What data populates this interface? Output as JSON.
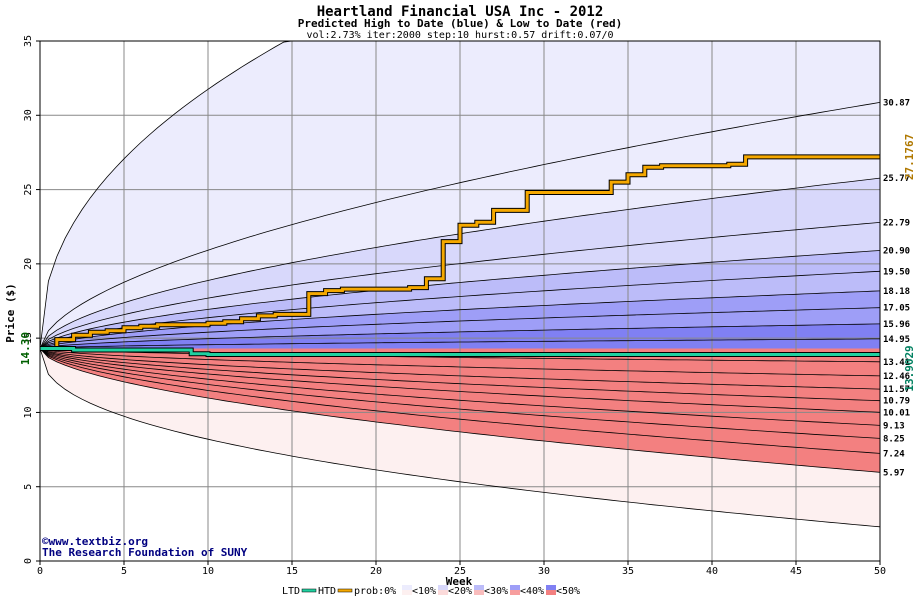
{
  "chart_data": {
    "type": "area",
    "title": "Heartland Financial USA Inc - 2012",
    "subtitle": "Predicted High to Date (blue) &  Low to Date (red)",
    "params_text": "vol:2.73% iter:2000 step:10 hurst:0.57 drift:0.07/0",
    "xlabel": "Week",
    "ylabel": "Price ($)",
    "xlim": [
      0,
      50
    ],
    "ylim": [
      0,
      35
    ],
    "x_ticks": [
      0,
      5,
      10,
      15,
      20,
      25,
      30,
      35,
      40,
      45,
      50
    ],
    "y_ticks": [
      0,
      5,
      10,
      15,
      20,
      25,
      30,
      35
    ],
    "grid": true,
    "start_price": 14.3,
    "start_label": "14.30",
    "upper_band_end_values": [
      30.87,
      25.77,
      22.79,
      20.9,
      19.5,
      18.18,
      17.05,
      15.96,
      14.95
    ],
    "upper_band_end_labels": [
      "30.87",
      "25.77",
      "22.79",
      "20.90",
      "19.50",
      "18.18",
      "17.05",
      "15.96",
      "14.95"
    ],
    "lower_band_end_values": [
      13.41,
      12.46,
      11.57,
      10.79,
      10.01,
      9.13,
      8.25,
      7.24,
      5.97
    ],
    "lower_band_end_labels": [
      "13.41",
      "12.46",
      "11.57",
      "10.79",
      "10.01",
      "9.13",
      "8.25",
      "7.24",
      "5.97"
    ],
    "series": [
      {
        "name": "HTD",
        "color": "#f5a800",
        "end_label": "27.1767",
        "x": [
          0,
          1,
          2,
          3,
          4,
          5,
          6,
          7,
          8,
          9,
          10,
          11,
          12,
          13,
          14,
          15,
          16,
          17,
          18,
          19,
          20,
          21,
          22,
          23,
          24,
          25,
          26,
          27,
          28,
          29,
          30,
          31,
          32,
          33,
          34,
          35,
          36,
          37,
          38,
          39,
          40,
          41,
          42,
          43,
          44,
          45,
          46,
          47,
          48,
          49,
          50
        ],
        "y": [
          14.3,
          14.9,
          15.2,
          15.4,
          15.5,
          15.7,
          15.8,
          15.9,
          15.9,
          15.9,
          16.0,
          16.1,
          16.3,
          16.5,
          16.6,
          16.6,
          18.0,
          18.2,
          18.3,
          18.3,
          18.3,
          18.3,
          18.4,
          19.0,
          21.5,
          22.6,
          22.8,
          23.6,
          23.6,
          24.8,
          24.8,
          24.8,
          24.8,
          24.8,
          25.5,
          26.0,
          26.5,
          26.6,
          26.6,
          26.6,
          26.6,
          26.7,
          27.2,
          27.2,
          27.2,
          27.2,
          27.2,
          27.2,
          27.2,
          27.2,
          27.2
        ]
      },
      {
        "name": "LTD",
        "color": "#20d0a0",
        "end_label": "13.9029",
        "x": [
          0,
          1,
          2,
          3,
          4,
          5,
          6,
          7,
          8,
          8.5,
          9,
          10,
          15,
          20,
          25,
          30,
          35,
          40,
          45,
          50
        ],
        "y": [
          14.3,
          14.3,
          14.2,
          14.2,
          14.2,
          14.2,
          14.2,
          14.2,
          14.2,
          14.2,
          13.95,
          13.9,
          13.9,
          13.9,
          13.9,
          13.9,
          13.9,
          13.9,
          13.9,
          13.9
        ]
      }
    ],
    "legend": {
      "position": "bottom",
      "items": [
        "LTD",
        "HTD",
        "prob:0%",
        "<10%",
        "<20%",
        "<30%",
        "<40%",
        "<50%"
      ],
      "band_colors_blue": [
        "#ffffff",
        "#ececfd",
        "#d8d8fb",
        "#bcbcf9",
        "#9e9ef7",
        "#8080f3"
      ],
      "band_colors_red": [
        "#ffffff",
        "#fdf0f0",
        "#fbdada",
        "#f9bcbc",
        "#f79e9e",
        "#f38080"
      ]
    },
    "credits": [
      "©www.textbiz.org",
      "The Research Foundation of SUNY"
    ],
    "colors": {
      "grid": "#888888",
      "credit_text": "#000080",
      "htd_label": "#b07800",
      "ltd_label": "#008060",
      "start_label": "#006000"
    }
  }
}
